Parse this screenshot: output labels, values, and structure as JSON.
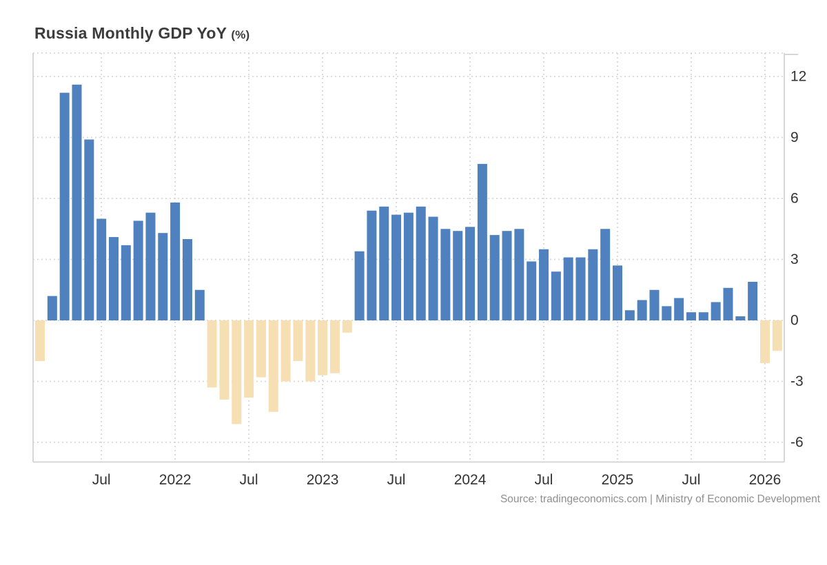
{
  "title": {
    "main": "Russia Monthly GDP YoY",
    "unit": "(%)"
  },
  "source": "Source: tradingeconomics.com | Ministry of Economic Development",
  "colors": {
    "bar_positive": "#4e81bd",
    "bar_negative": "#f5dfb3",
    "grid": "#d8d8d8",
    "axis": "#d6d6d6",
    "tick_label": "#333333",
    "title": "#3c3c3c",
    "source": "#8f8f8f"
  },
  "chart_data": {
    "type": "bar",
    "title": "Russia Monthly GDP YoY (%)",
    "xlabel": "",
    "ylabel": "%",
    "ylim": [
      -7,
      13.2
    ],
    "grid": true,
    "legend_position": "none",
    "y_ticks": [
      12,
      9,
      6,
      3,
      0,
      -3,
      -6
    ],
    "x_ticks": [
      {
        "i": 5,
        "label": "Jul"
      },
      {
        "i": 11,
        "label": "2022"
      },
      {
        "i": 17,
        "label": "Jul"
      },
      {
        "i": 23,
        "label": "2023"
      },
      {
        "i": 29,
        "label": "Jul"
      },
      {
        "i": 35,
        "label": "2024"
      },
      {
        "i": 41,
        "label": "Jul"
      },
      {
        "i": 47,
        "label": "2025"
      },
      {
        "i": 53,
        "label": "Jul"
      },
      {
        "i": 59,
        "label": "2026"
      }
    ],
    "months": [
      "2021-02",
      "2021-03",
      "2021-04",
      "2021-05",
      "2021-06",
      "2021-07",
      "2021-08",
      "2021-09",
      "2021-10",
      "2021-11",
      "2021-12",
      "2022-01",
      "2022-02",
      "2022-03",
      "2022-04",
      "2022-05",
      "2022-06",
      "2022-07",
      "2022-08",
      "2022-09",
      "2022-10",
      "2022-11",
      "2022-12",
      "2023-01",
      "2023-02",
      "2023-03",
      "2023-04",
      "2023-05",
      "2023-06",
      "2023-07",
      "2023-08",
      "2023-09",
      "2023-10",
      "2023-11",
      "2023-12",
      "2024-01",
      "2024-02",
      "2024-03",
      "2024-04",
      "2024-05",
      "2024-06",
      "2024-07",
      "2024-08",
      "2024-09",
      "2024-10",
      "2024-11",
      "2024-12",
      "2025-01",
      "2025-02",
      "2025-03",
      "2025-04",
      "2025-05",
      "2025-06",
      "2025-07",
      "2025-08",
      "2025-09",
      "2025-10",
      "2025-11",
      "2025-12",
      "2026-01",
      "2026-02"
    ],
    "values": [
      -2.0,
      1.2,
      11.2,
      11.6,
      8.9,
      5.0,
      4.1,
      3.7,
      4.9,
      5.3,
      4.3,
      5.8,
      4.0,
      1.5,
      -3.3,
      -3.9,
      -5.1,
      -3.8,
      -2.8,
      -4.5,
      -3.0,
      -2.0,
      -3.0,
      -2.7,
      -2.6,
      -0.6,
      3.4,
      5.4,
      5.6,
      5.2,
      5.3,
      5.6,
      5.1,
      4.5,
      4.4,
      4.6,
      7.7,
      4.2,
      4.4,
      4.5,
      2.9,
      3.5,
      2.4,
      3.1,
      3.1,
      3.5,
      4.5,
      2.7,
      0.5,
      1.0,
      1.5,
      0.7,
      1.1,
      0.4,
      0.4,
      0.9,
      1.6,
      0.2,
      1.9,
      -2.1,
      -1.5
    ]
  }
}
